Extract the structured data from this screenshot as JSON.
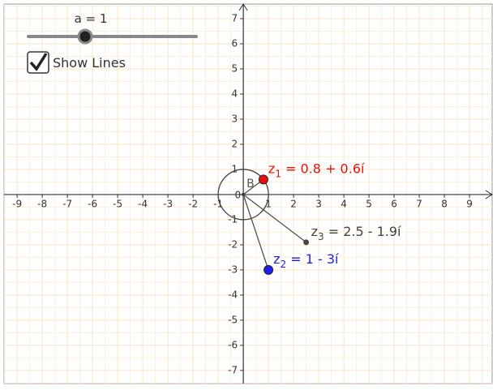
{
  "slider": {
    "label": "a = 1"
  },
  "checkbox": {
    "label": "Show Lines",
    "checked": true
  },
  "graph": {
    "xlim": [
      -9.52,
      9.9
    ],
    "ylim": [
      -7.52,
      7.58
    ],
    "xticks": [
      -9,
      -8,
      -7,
      -6,
      -5,
      -4,
      -3,
      -2,
      -1,
      0,
      1,
      2,
      3,
      4,
      5,
      6,
      7,
      8,
      9
    ],
    "yticks": [
      -7,
      -6,
      -5,
      -4,
      -3,
      -2,
      -1,
      1,
      2,
      3,
      4,
      5,
      6,
      7
    ],
    "circle_label": "B",
    "points": [
      {
        "name": "z",
        "subscript": "1",
        "label": " = 0.8 + 0.6í",
        "x": 0.8,
        "y": 0.6,
        "color": "#e8100f"
      },
      {
        "name": "z",
        "subscript": "2",
        "label": " = 1 - 3í",
        "x": 1,
        "y": -3,
        "color": "#1f1fe8"
      },
      {
        "name": "z",
        "subscript": "3",
        "label": " = 2.5 - 1.9í",
        "x": 2.5,
        "y": -1.9,
        "color": "#444444"
      }
    ]
  }
}
